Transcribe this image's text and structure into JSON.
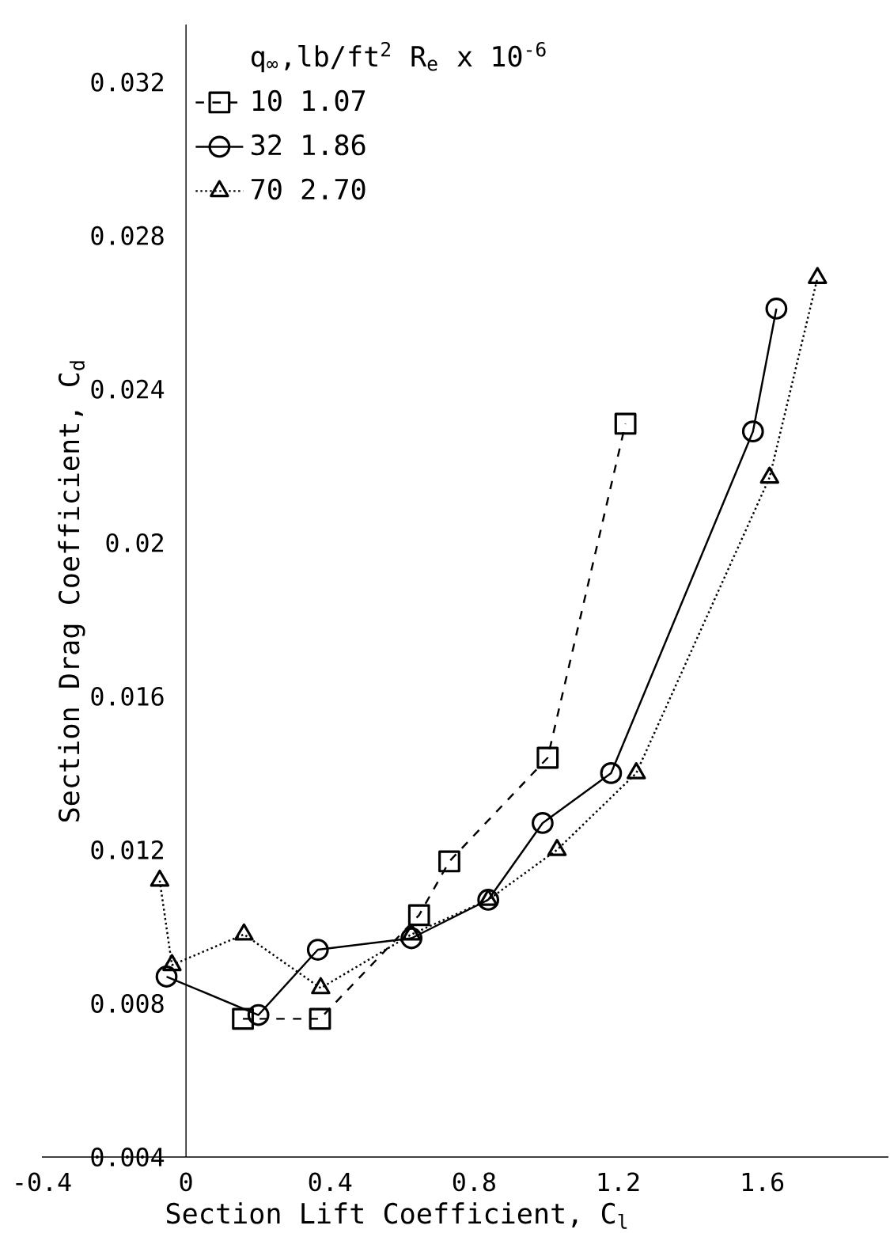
{
  "chart_data": {
    "type": "line",
    "xlabel": "Section Lift Coefficient, C$_{l}$",
    "ylabel": "Section Drag Coefficient, C$_{d}$",
    "legend_title": "q$_{∞}$,lb/ft$^{2}$   R$_{e}$ x 10$^{-6}$",
    "legend": "top left",
    "grid": false,
    "xlim": [
      -0.4,
      1.95
    ],
    "ylim": [
      0.004,
      0.0335
    ],
    "xticks": [
      -0.4,
      0,
      0.4,
      0.8,
      1.2,
      1.6
    ],
    "yticks": [
      0.004,
      0.008,
      0.012,
      0.016,
      0.02,
      0.024,
      0.028,
      0.032
    ],
    "series": [
      {
        "name": "10   1.07",
        "color": "#000000",
        "marker": "square",
        "line_style": "dashed",
        "x": [
          0.158,
          0.372,
          0.647,
          0.731,
          1.004,
          1.22
        ],
        "values": [
          0.0076,
          0.0076,
          0.0103,
          0.0117,
          0.0144,
          0.0231
        ]
      },
      {
        "name": "32   1.86",
        "color": "#000000",
        "marker": "circle",
        "line_style": "solid",
        "x": [
          -0.054,
          0.201,
          0.366,
          0.626,
          0.839,
          0.99,
          1.18,
          1.574,
          1.639
        ],
        "values": [
          0.0087,
          0.0077,
          0.0094,
          0.0097,
          0.0107,
          0.0127,
          0.014,
          0.0229,
          0.0261
        ]
      },
      {
        "name": "70   2.70",
        "color": "#000000",
        "marker": "triangle",
        "line_style": "dotted",
        "x": [
          -0.073,
          -0.039,
          0.161,
          0.374,
          0.626,
          0.839,
          1.03,
          1.25,
          1.62,
          1.753
        ],
        "values": [
          0.0112,
          0.009,
          0.0098,
          0.0084,
          0.0098,
          0.0107,
          0.012,
          0.014,
          0.0217,
          0.0269
        ]
      }
    ]
  }
}
